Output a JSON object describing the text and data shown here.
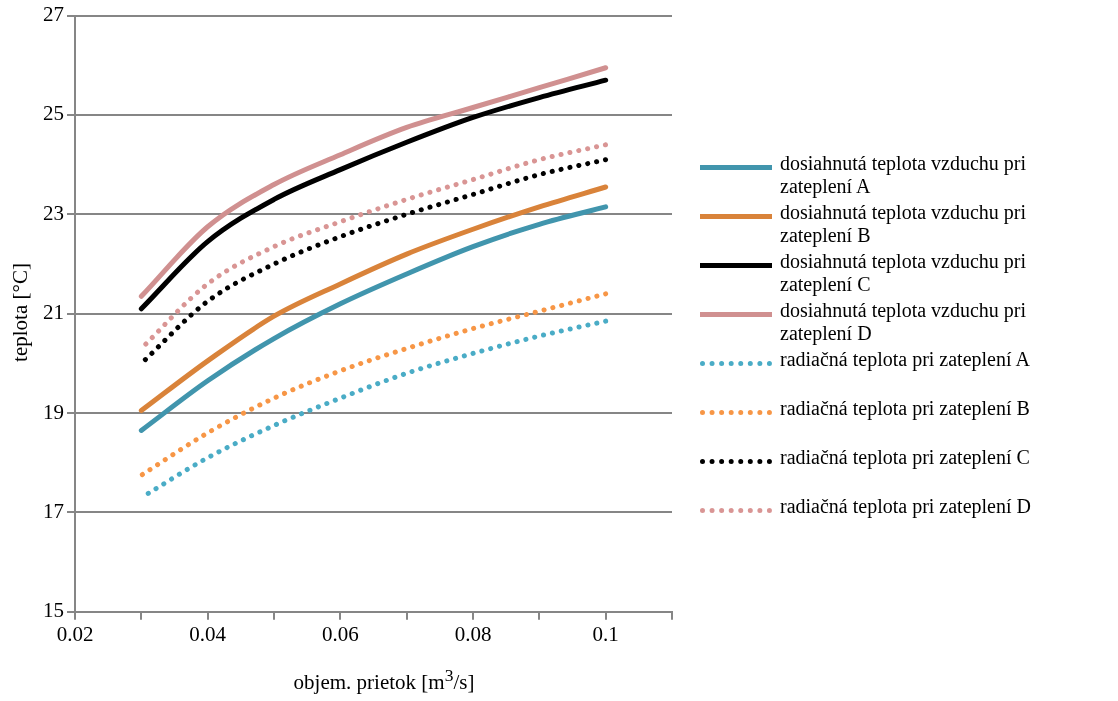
{
  "chart_data": {
    "type": "line",
    "xlabel": "objem. prietok [m$^{3}$/s]",
    "ylabel": "teplota [°C]",
    "x": [
      0.03,
      0.04,
      0.05,
      0.06,
      0.07,
      0.08,
      0.09,
      0.1
    ],
    "xlim": [
      0.02,
      0.11
    ],
    "xticks": [
      0.02,
      {
        "value": 0.03,
        "label": null
      },
      0.04,
      {
        "value": 0.05,
        "label": null
      },
      0.06,
      {
        "value": 0.07,
        "label": null
      },
      0.08,
      {
        "value": 0.09,
        "label": null
      },
      0.1,
      {
        "value": 0.11,
        "label": null
      }
    ],
    "ylim": [
      15,
      27
    ],
    "yticks": [
      15,
      17,
      19,
      21,
      23,
      25,
      27
    ],
    "grid": "y",
    "legend": "right",
    "marker": "none",
    "series": [
      {
        "name": "dosiahnutá teplota vzduchu pri zateplení A",
        "color": "#4195ad",
        "line_style": "solid",
        "values": [
          18.65,
          19.65,
          20.5,
          21.2,
          21.8,
          22.35,
          22.8,
          23.15
        ]
      },
      {
        "name": "dosiahnutá teplota vzduchu pri zateplení B",
        "color": "#d9833a",
        "line_style": "solid",
        "values": [
          19.05,
          20.05,
          20.95,
          21.6,
          22.2,
          22.7,
          23.15,
          23.55
        ]
      },
      {
        "name": "dosiahnutá teplota vzduchu pri zateplení C",
        "color": "#000000",
        "line_style": "solid",
        "values": [
          21.1,
          22.45,
          23.3,
          23.9,
          24.45,
          24.95,
          25.35,
          25.7
        ]
      },
      {
        "name": "dosiahnutá teplota vzduchu pri zateplení D",
        "color": "#d09090",
        "line_style": "solid",
        "values": [
          21.35,
          22.75,
          23.6,
          24.2,
          24.75,
          25.15,
          25.55,
          25.95
        ]
      },
      {
        "name": "radiačná teplota pri zateplení A",
        "color": "#4aacc6",
        "line_style": "dotted",
        "values": [
          17.3,
          18.1,
          18.75,
          19.3,
          19.8,
          20.2,
          20.55,
          20.85
        ]
      },
      {
        "name": "radiačná teplota pri zateplení B",
        "color": "#f79646",
        "line_style": "dotted",
        "values": [
          17.75,
          18.6,
          19.3,
          19.85,
          20.3,
          20.7,
          21.05,
          21.4
        ]
      },
      {
        "name": "radiačná teplota pri zateplení C",
        "color": "#000000",
        "line_style": "dotted",
        "values": [
          20.0,
          21.25,
          22.0,
          22.55,
          23.0,
          23.4,
          23.8,
          24.1
        ]
      },
      {
        "name": "radiačná teplota pri zateplení D",
        "color": "#d99594",
        "line_style": "dotted",
        "values": [
          20.3,
          21.6,
          22.35,
          22.85,
          23.3,
          23.7,
          24.1,
          24.4
        ]
      }
    ]
  }
}
